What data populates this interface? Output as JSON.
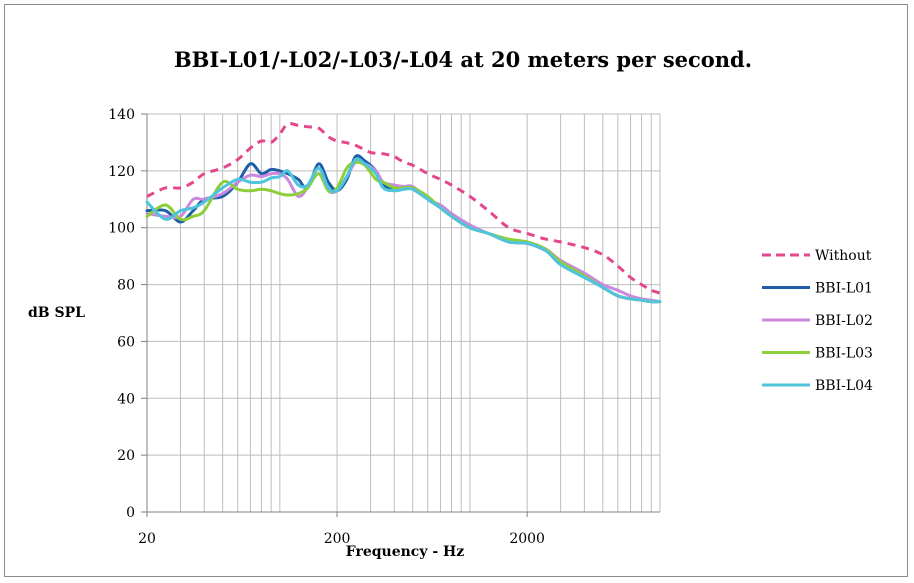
{
  "chart_data": {
    "type": "line",
    "title": "BBI-L01/-L02/-L03/-L04 at 20 meters per second.",
    "xlabel": "Frequency - Hz",
    "ylabel": "dB SPL",
    "xscale": "log",
    "xlim": [
      20,
      10000
    ],
    "ylim": [
      0,
      140
    ],
    "yticks": [
      0,
      20,
      40,
      60,
      80,
      100,
      120,
      140
    ],
    "xtick_labels": [
      {
        "value": 20,
        "label": "20"
      },
      {
        "value": 200,
        "label": "200"
      },
      {
        "value": 2000,
        "label": "2000"
      }
    ],
    "grid": true,
    "legend_position": "right",
    "series": [
      {
        "name": "Without",
        "color": "#e5478c",
        "dash": "dashed",
        "x": [
          20,
          25,
          30,
          35,
          40,
          50,
          60,
          70,
          80,
          90,
          100,
          110,
          125,
          140,
          160,
          180,
          200,
          220,
          250,
          300,
          350,
          400,
          450,
          500,
          600,
          700,
          800,
          1000,
          1250,
          1600,
          2000,
          2500,
          3000,
          4000,
          5000,
          6000,
          7000,
          8000,
          9000,
          10000
        ],
        "values": [
          111,
          114,
          114,
          116,
          119,
          121,
          124,
          128,
          130.5,
          130,
          133,
          136.5,
          136,
          135.5,
          135,
          132,
          130.5,
          130,
          129,
          126.5,
          126,
          125,
          123,
          122,
          119,
          117,
          115,
          111,
          106,
          100,
          98,
          96,
          95,
          93,
          90.5,
          86.5,
          82.5,
          80,
          78,
          77
        ]
      },
      {
        "name": "BBI-L01",
        "color": "#1f5fa8",
        "dash": "solid",
        "x": [
          20,
          25,
          30,
          35,
          40,
          50,
          60,
          70,
          80,
          90,
          100,
          110,
          125,
          140,
          160,
          180,
          200,
          225,
          250,
          280,
          320,
          350,
          400,
          450,
          500,
          600,
          700,
          800,
          1000,
          1250,
          1600,
          2000,
          2500,
          3000,
          4000,
          5000,
          6000,
          7000,
          8000,
          9000,
          10000
        ],
        "values": [
          106,
          106,
          102,
          106,
          110,
          111,
          116,
          122.5,
          119,
          120.5,
          120,
          119,
          117,
          114,
          122.5,
          116,
          113,
          117,
          125,
          123.5,
          120,
          115,
          114,
          114,
          114,
          110,
          107,
          104,
          100,
          98,
          95,
          94.5,
          92,
          88,
          83,
          79,
          76,
          75,
          74.5,
          74,
          74
        ]
      },
      {
        "name": "BBI-L02",
        "color": "#cc88dd",
        "dash": "solid",
        "x": [
          20,
          25,
          30,
          35,
          40,
          50,
          60,
          70,
          80,
          90,
          100,
          110,
          125,
          140,
          160,
          180,
          200,
          225,
          250,
          280,
          320,
          350,
          400,
          450,
          500,
          600,
          700,
          800,
          1000,
          1250,
          1600,
          2000,
          2500,
          3000,
          4000,
          5000,
          6000,
          7000,
          8000,
          9000,
          10000
        ],
        "values": [
          105,
          104,
          104,
          110,
          110,
          112,
          116,
          118.5,
          118,
          119,
          119,
          117,
          111,
          114,
          119,
          113,
          113,
          118,
          123,
          122.5,
          120,
          116,
          115,
          114.5,
          114.5,
          110,
          108,
          105,
          101,
          98,
          95.5,
          95,
          92.5,
          88.5,
          84,
          80,
          78,
          76,
          75,
          74.5,
          74
        ]
      },
      {
        "name": "BBI-L03",
        "color": "#8dcf3a",
        "dash": "solid",
        "x": [
          20,
          25,
          30,
          35,
          40,
          50,
          60,
          70,
          80,
          90,
          100,
          110,
          125,
          140,
          160,
          180,
          200,
          225,
          250,
          280,
          320,
          350,
          400,
          450,
          500,
          600,
          700,
          800,
          1000,
          1250,
          1600,
          2000,
          2500,
          3000,
          4000,
          5000,
          6000,
          7000,
          8000,
          9000,
          10000
        ],
        "values": [
          104,
          108,
          103,
          104,
          106,
          116,
          113.5,
          113,
          113.5,
          113,
          112,
          111.5,
          112,
          114,
          119,
          113,
          114,
          121,
          123,
          122,
          117,
          116,
          114,
          114,
          114,
          111,
          107,
          104,
          100,
          98,
          96,
          95,
          92.5,
          88,
          83,
          79,
          76,
          75,
          74.5,
          74,
          74
        ]
      },
      {
        "name": "BBI-L04",
        "color": "#4fc4dc",
        "dash": "solid",
        "x": [
          20,
          25,
          30,
          35,
          40,
          50,
          60,
          70,
          80,
          90,
          100,
          110,
          125,
          140,
          160,
          180,
          200,
          225,
          250,
          280,
          320,
          350,
          400,
          450,
          500,
          600,
          700,
          800,
          1000,
          1250,
          1600,
          2000,
          2500,
          3000,
          4000,
          5000,
          6000,
          7000,
          8000,
          9000,
          10000
        ],
        "values": [
          109,
          103,
          106,
          107,
          109,
          114,
          117,
          116,
          116,
          117.5,
          118,
          120,
          115,
          115,
          121,
          114,
          113,
          118,
          124,
          122.5,
          119,
          114,
          113,
          113.5,
          113.5,
          110,
          107,
          104,
          100,
          98,
          95,
          94.5,
          92,
          87,
          82.5,
          79,
          76,
          75,
          74.5,
          74,
          74
        ]
      }
    ]
  }
}
